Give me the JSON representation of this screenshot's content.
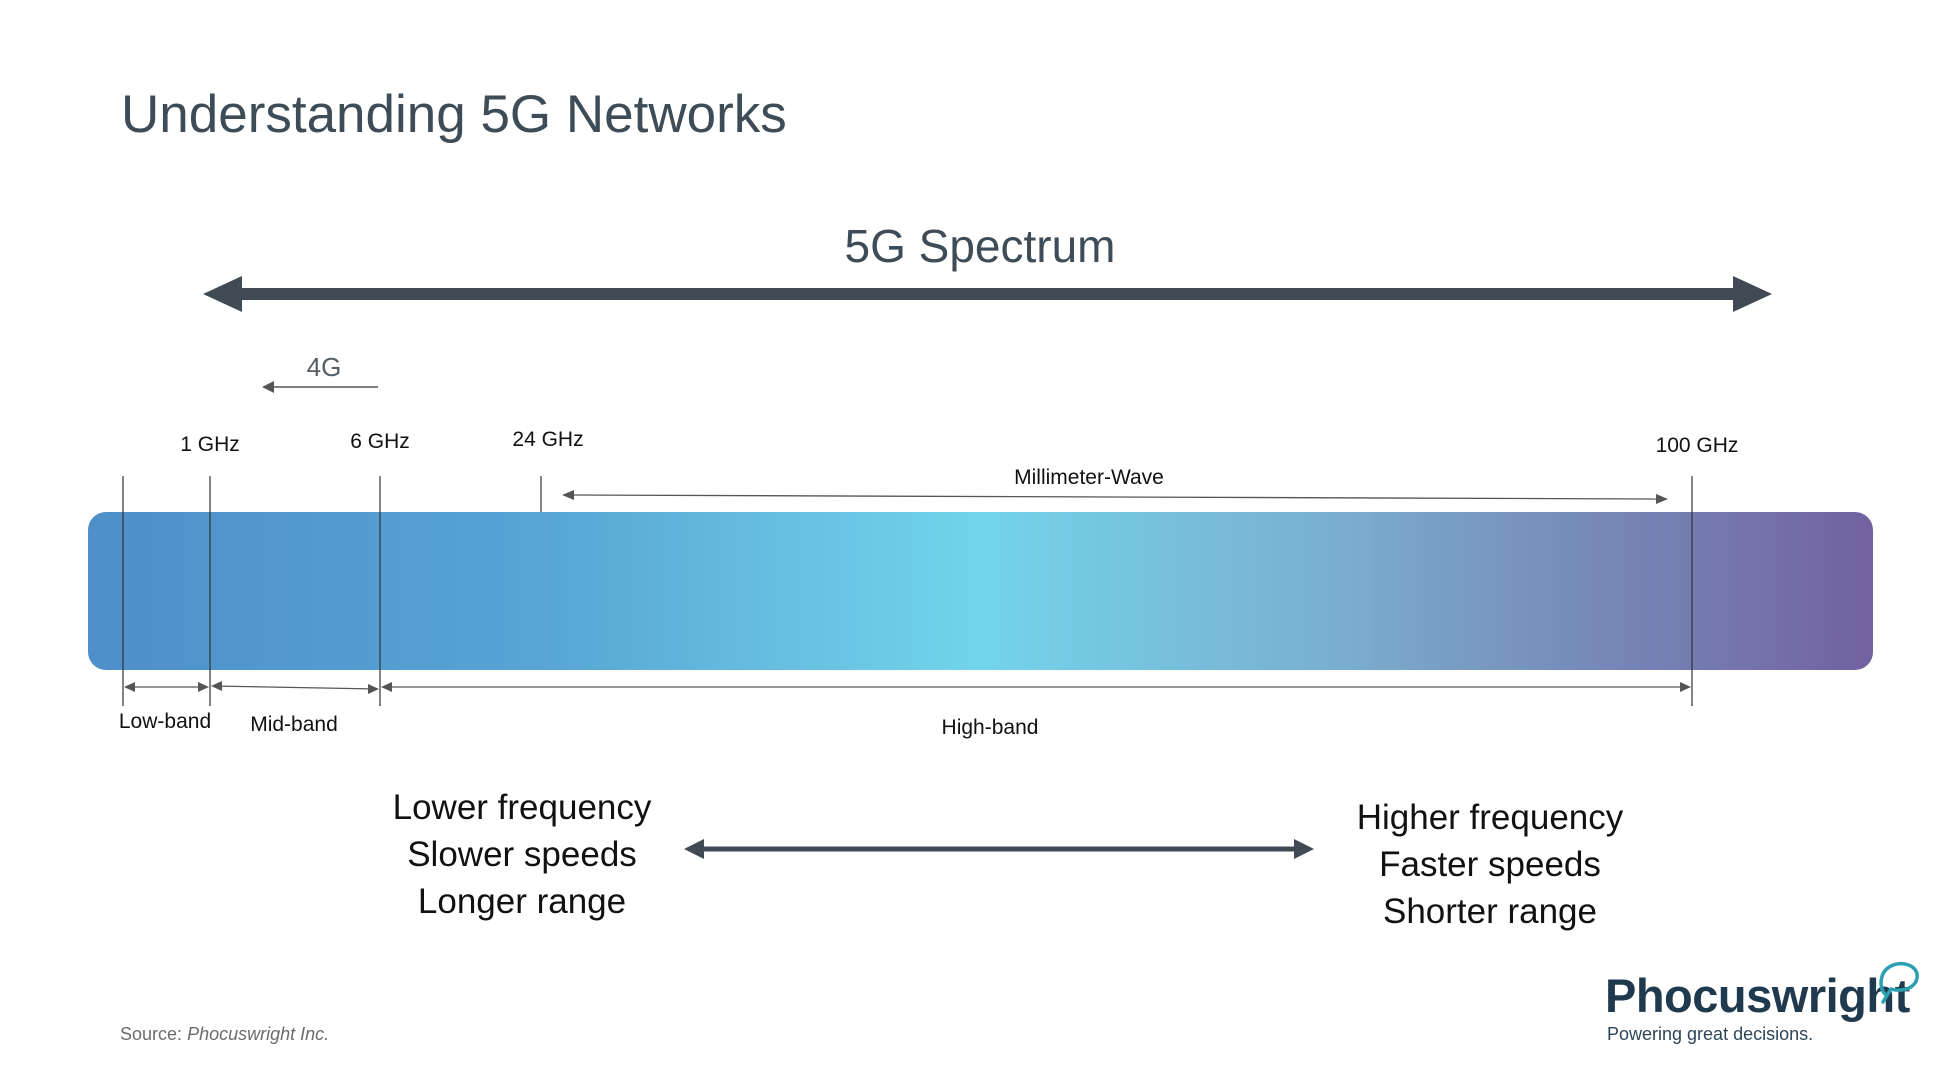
{
  "slide": {
    "title": "Understanding 5G Networks",
    "spectrum_label": "5G Spectrum",
    "sub_label_4g": "4G"
  },
  "frequency_markers": [
    {
      "label": "1 GHz"
    },
    {
      "label": "6 GHz"
    },
    {
      "label": "24 GHz"
    },
    {
      "label": "100 GHz"
    }
  ],
  "millimeter_label": "Millimeter-Wave",
  "bands": [
    {
      "label": "Low-band"
    },
    {
      "label": "Mid-band"
    },
    {
      "label": "High-band"
    }
  ],
  "comparison": {
    "left": [
      "Lower frequency",
      "Slower speeds",
      "Longer range"
    ],
    "right": [
      "Higher frequency",
      "Faster speeds",
      "Shorter range"
    ]
  },
  "source": {
    "prefix": "Source:",
    "name": "Phocuswright Inc."
  },
  "brand": {
    "name": "Phocuswright",
    "tagline": "Powering great decisions."
  },
  "colors": {
    "text_dark": "#3e4c57",
    "gradient_start": "#4e8fc9",
    "gradient_mid": "#72d4ea",
    "gradient_end": "#72619f",
    "brand_accent": "#2aa0b0"
  }
}
